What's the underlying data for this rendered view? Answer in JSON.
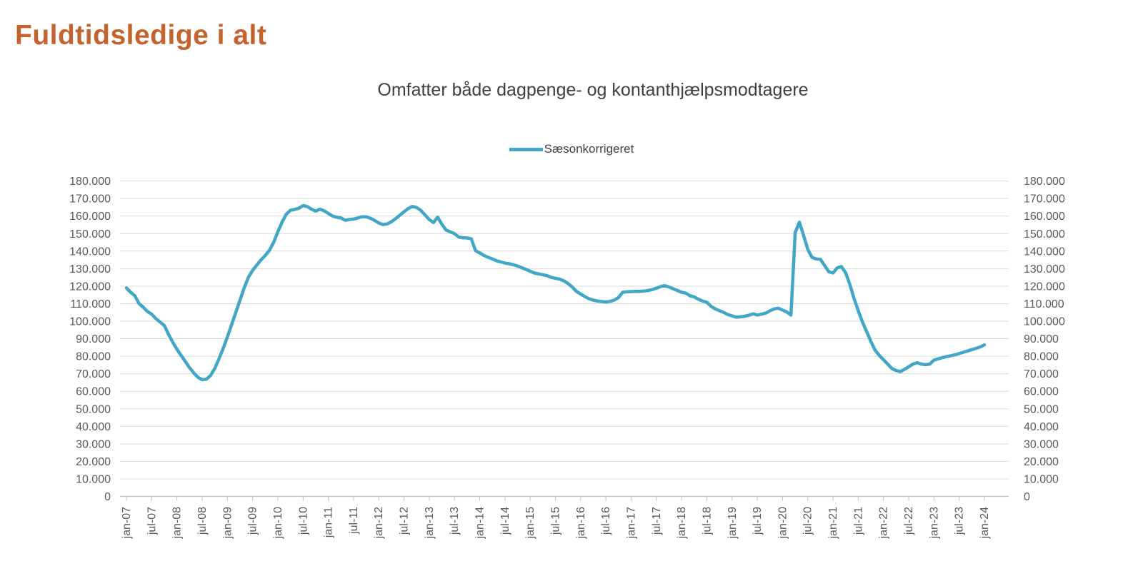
{
  "page": {
    "title": "Fuldtidsledige i alt"
  },
  "colors": {
    "page_title": "#C4632D",
    "chart_title": "#404040",
    "legend_text": "#404040",
    "axis_text": "#595959",
    "gridline": "#D9D9D9",
    "axis_line": "#BFBFBF",
    "series_line": "#42A6C6"
  },
  "chart_data": {
    "type": "line",
    "title": "Omfatter både dagpenge- og kontanthjælpsmodtagere",
    "legend_entries": [
      "Sæsonkorrigeret"
    ],
    "legend_position": "top-center",
    "grid": "horizontal",
    "dual_y_axis": true,
    "ylim": [
      0,
      180000
    ],
    "y_tick_step": 10000,
    "y_tick_labels": [
      "0",
      "10.000",
      "20.000",
      "30.000",
      "40.000",
      "50.000",
      "60.000",
      "70.000",
      "80.000",
      "90.000",
      "100.000",
      "110.000",
      "120.000",
      "130.000",
      "140.000",
      "150.000",
      "160.000",
      "170.000",
      "180.000"
    ],
    "x_frequency": "monthly",
    "x_start": "jan-07",
    "x_end": "jan-24",
    "x_tick_every_months": 6,
    "x_tick_labels": [
      "jan-07",
      "jul-07",
      "jan-08",
      "jul-08",
      "jan-09",
      "jul-09",
      "jan-10",
      "jul-10",
      "jan-11",
      "jul-11",
      "jan-12",
      "jul-12",
      "jan-13",
      "jul-13",
      "jan-14",
      "jul-14",
      "jan-15",
      "jul-15",
      "jan-16",
      "jul-16",
      "jan-17",
      "jul-17",
      "jan-18",
      "jul-18",
      "jan-19",
      "jul-19",
      "jan-20",
      "jul-20",
      "jan-21",
      "jul-21",
      "jan-22",
      "jul-22",
      "jan-23",
      "jul-23",
      "jan-24"
    ],
    "series": [
      {
        "name": "Sæsonkorrigeret",
        "color": "#42A6C6",
        "values": [
          119000,
          116500,
          114500,
          110000,
          108000,
          105500,
          104000,
          101500,
          99500,
          97500,
          92500,
          88000,
          84000,
          80500,
          77000,
          73500,
          70500,
          68000,
          66600,
          66900,
          69000,
          73000,
          78500,
          84500,
          91000,
          98000,
          105000,
          112000,
          119000,
          125000,
          129000,
          132000,
          135000,
          137500,
          140500,
          145000,
          151000,
          156500,
          161000,
          163300,
          163800,
          164500,
          166000,
          165400,
          163900,
          162800,
          163900,
          163000,
          161500,
          160000,
          159300,
          158900,
          157600,
          158000,
          158300,
          158900,
          159600,
          159600,
          158700,
          157500,
          156100,
          155100,
          155500,
          156800,
          158500,
          160500,
          162500,
          164300,
          165500,
          164900,
          163200,
          160600,
          158000,
          156300,
          159400,
          155300,
          152000,
          151000,
          150000,
          148000,
          147600,
          147500,
          147000,
          140200,
          139000,
          137500,
          136500,
          135500,
          134500,
          133800,
          133200,
          132800,
          132200,
          131500,
          130500,
          129500,
          128500,
          127500,
          127000,
          126500,
          126000,
          125000,
          124500,
          124000,
          123000,
          121500,
          119500,
          117000,
          115500,
          114000,
          112800,
          112000,
          111500,
          111200,
          111000,
          111300,
          112000,
          113500,
          116500,
          116800,
          116900,
          117000,
          117000,
          117200,
          117500,
          118000,
          118800,
          119800,
          120300,
          119500,
          118500,
          117500,
          116500,
          116000,
          114500,
          113900,
          112500,
          111500,
          110800,
          108500,
          107000,
          106000,
          105000,
          103800,
          103000,
          102300,
          102500,
          102800,
          103400,
          104200,
          103500,
          104000,
          104600,
          105900,
          107000,
          107400,
          106300,
          105300,
          103500,
          150500,
          156500,
          149000,
          141000,
          136400,
          135500,
          135300,
          131800,
          128200,
          127500,
          130400,
          131200,
          127600,
          121000,
          113000,
          106000,
          99500,
          94000,
          88500,
          83500,
          80500,
          78000,
          75500,
          73000,
          71800,
          71300,
          72500,
          74000,
          75500,
          76300,
          75500,
          75200,
          75500,
          77800,
          78500,
          79200,
          79800,
          80300,
          80800,
          81500,
          82300,
          83000,
          83800,
          84500,
          85300,
          86500
        ]
      }
    ]
  }
}
